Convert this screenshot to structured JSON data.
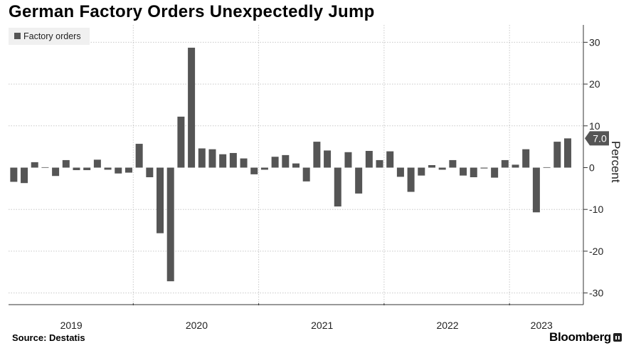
{
  "title": "German Factory Orders Unexpectedly Jump",
  "source": "Source:  Destatis",
  "brand": "Bloomberg",
  "colors": {
    "bar": "#555555",
    "grid": "#c8c8c8",
    "axis": "#333333",
    "legend_bg": "#f0f0f0",
    "callout": "#555555"
  },
  "chart_data": {
    "type": "bar",
    "series": [
      {
        "name": "Factory orders",
        "values": [
          -3.4,
          -3.7,
          1.3,
          0.1,
          -2.0,
          1.8,
          -0.6,
          -0.6,
          1.9,
          -0.5,
          -1.4,
          -1.2,
          5.7,
          -2.3,
          -15.7,
          -27.2,
          12.2,
          28.7,
          4.6,
          4.4,
          3.2,
          3.5,
          2.2,
          -1.6,
          -0.5,
          2.6,
          3.0,
          1.0,
          -3.3,
          6.2,
          4.1,
          -9.3,
          3.7,
          -6.2,
          4.0,
          1.8,
          3.9,
          -2.2,
          -5.8,
          -1.9,
          0.6,
          -0.5,
          1.8,
          -1.9,
          -2.3,
          -0.2,
          -2.4,
          1.8,
          0.7,
          4.4,
          -10.7,
          0.1,
          6.2,
          7.0
        ]
      }
    ],
    "x_start": "2019-01",
    "xticks": [
      "2019",
      "2020",
      "2021",
      "2022",
      "2023"
    ],
    "yticks": [
      30,
      20,
      10,
      0,
      -10,
      -20,
      -30
    ],
    "ylim": [
      -33,
      34
    ],
    "ylabel": "Percent",
    "last_value_label": "7.0",
    "legend": [
      "Factory orders"
    ],
    "legend_position": "top-left",
    "grid": true,
    "y_axis_side": "right"
  }
}
